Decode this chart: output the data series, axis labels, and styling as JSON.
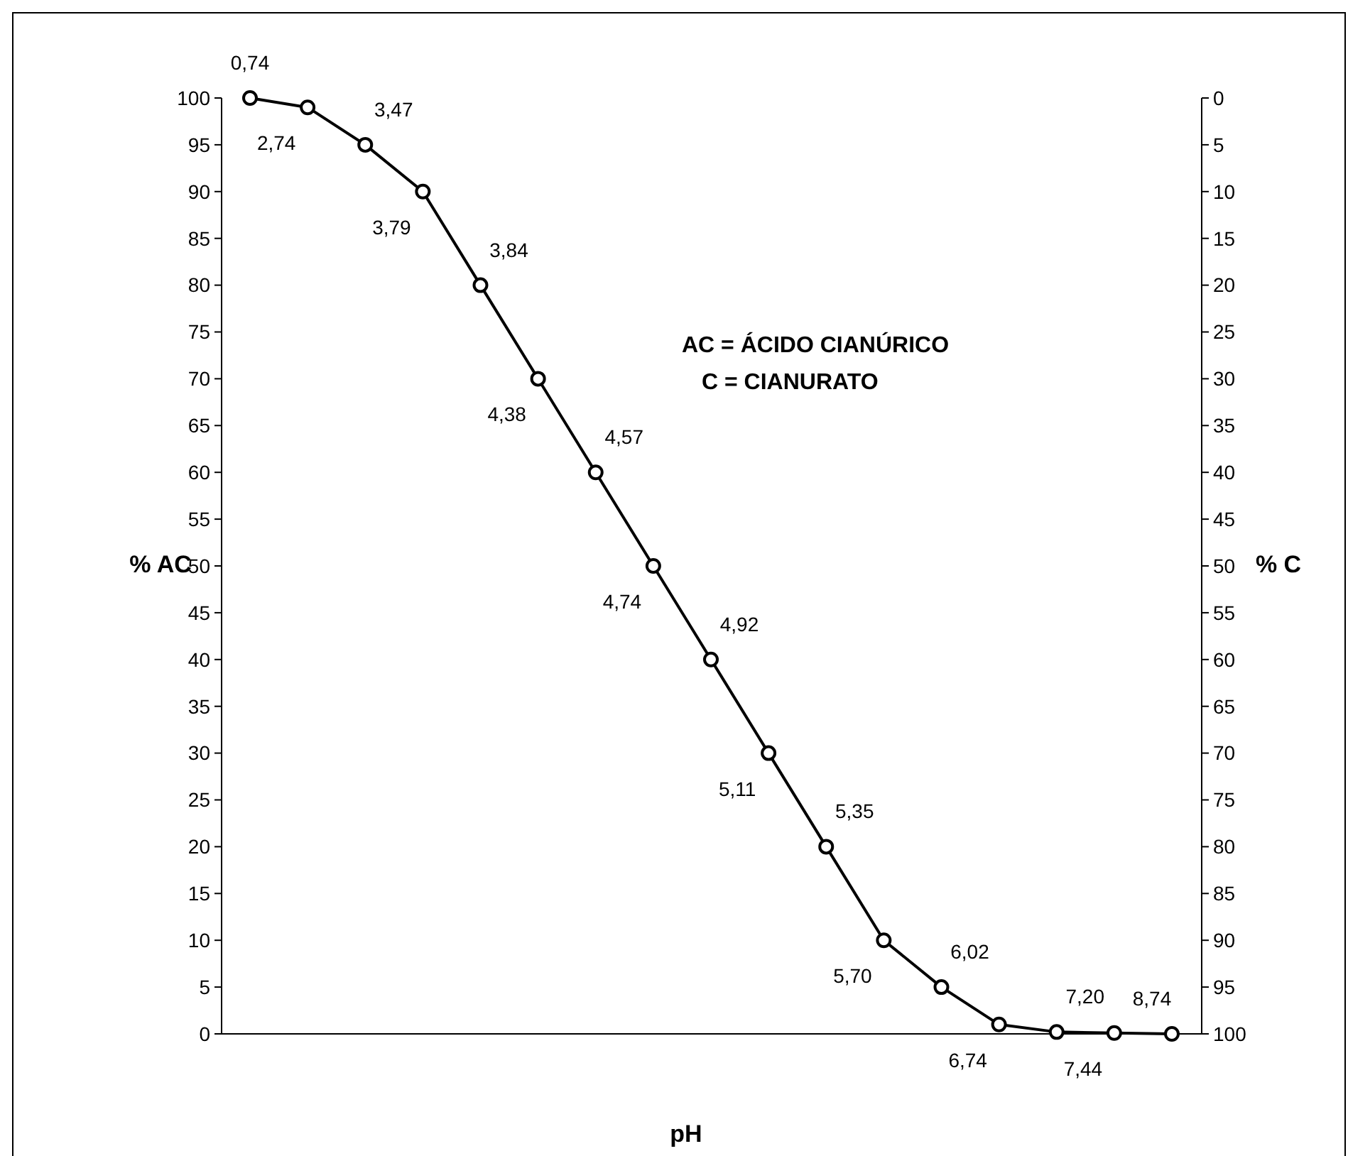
{
  "chart_data": {
    "type": "line",
    "xlabel": "pH",
    "ylabel": "% AC",
    "y2label": "% C",
    "categories": [
      null,
      null,
      null,
      null,
      null,
      null,
      null,
      null,
      null,
      null,
      null,
      null,
      null,
      null,
      null,
      null,
      null
    ],
    "series": [
      {
        "color": "#000000",
        "values": [
          100,
          99,
          95,
          90,
          80,
          70,
          60,
          50,
          40,
          30,
          20,
          10,
          5,
          1,
          0.2,
          0.1,
          0
        ]
      }
    ],
    "ylim": [
      0,
      100
    ],
    "yticks": [
      0,
      5,
      10,
      15,
      20,
      25,
      30,
      35,
      40,
      45,
      50,
      55,
      60,
      65,
      70,
      75,
      80,
      85,
      90,
      95,
      100
    ],
    "y2lim": [
      100,
      0
    ],
    "y2ticks": [
      0,
      5,
      10,
      15,
      20,
      25,
      30,
      35,
      40,
      45,
      50,
      55,
      60,
      65,
      70,
      75,
      80,
      85,
      90,
      95,
      100
    ],
    "annotations": [
      "AC = ÁCIDO CIANÚRICO",
      "C = CIANURATO",
      "0,74",
      "2,74",
      "3,47",
      "3,79",
      "3,84",
      "4,38",
      "4,57",
      "4,74",
      "4,92",
      "5,11",
      "5,35",
      "5,70",
      "6,02",
      "6,74",
      "7,20",
      "7,44",
      "8,74"
    ],
    "grid": false,
    "marker": "circle",
    "line_style": "solid"
  }
}
